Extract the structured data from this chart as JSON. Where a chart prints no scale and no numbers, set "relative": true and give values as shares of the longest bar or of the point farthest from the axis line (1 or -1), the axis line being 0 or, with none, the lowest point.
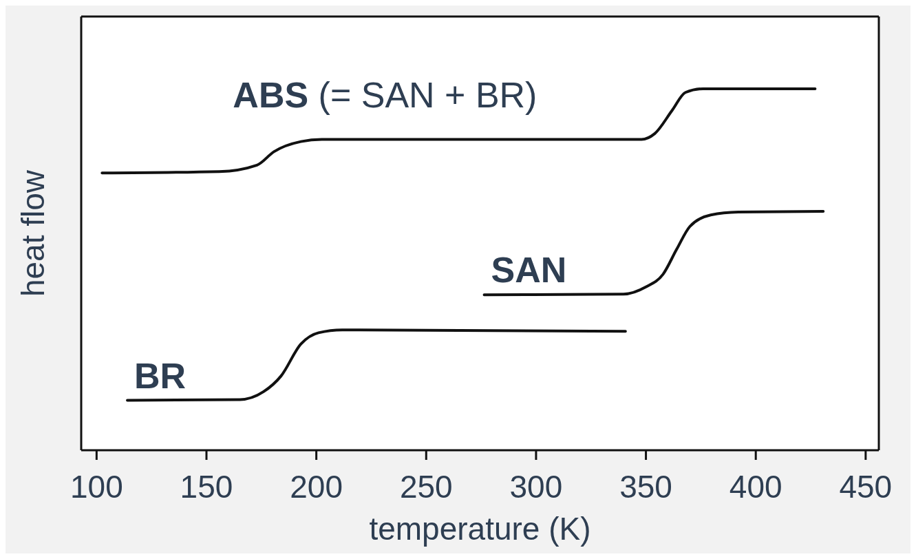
{
  "chart_data": {
    "type": "line",
    "relative": true,
    "xlabel": "temperature (K)",
    "ylabel": "heat flow",
    "xlim": [
      93,
      456
    ],
    "xticks": [
      100,
      150,
      200,
      250,
      300,
      350,
      400,
      450
    ],
    "marker": "none",
    "line_style": "solid",
    "annotations": [
      "(= SAN + BR)"
    ],
    "series": [
      {
        "name": "ABS",
        "color": "#111111",
        "x": [
          102.5,
          155.9,
          173,
          180.7,
          193,
          202.5,
          348,
          354,
          362,
          368,
          376,
          427
        ],
        "values": [
          0.767,
          0.771,
          0.789,
          0.826,
          0.854,
          0.86,
          0.86,
          0.876,
          0.941,
          0.99,
          1,
          1
        ]
      },
      {
        "name": "SAN",
        "color": "#111111",
        "x": [
          276.4,
          339.8,
          350,
          357.8,
          364,
          370,
          379.5,
          392,
          430.7
        ],
        "values": [
          0.43,
          0.432,
          0.452,
          0.487,
          0.556,
          0.619,
          0.651,
          0.659,
          0.661
        ]
      },
      {
        "name": "BR",
        "color": "#111111",
        "x": [
          114,
          165.2,
          176,
          183.9,
          193,
          201,
          211.8,
          340.7
        ],
        "values": [
          0.138,
          0.14,
          0.162,
          0.205,
          0.294,
          0.325,
          0.333,
          0.329
        ]
      }
    ]
  }
}
